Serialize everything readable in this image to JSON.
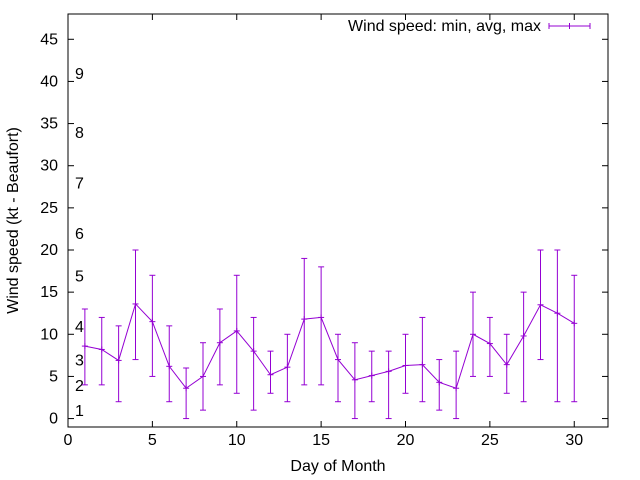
{
  "chart_data": {
    "type": "line",
    "xlabel": "Day of Month",
    "ylabel": "Wind speed (kt - Beaufort)",
    "xlim": [
      0,
      32
    ],
    "ylim": [
      -1,
      48
    ],
    "xticks": [
      0,
      5,
      10,
      15,
      20,
      25,
      30
    ],
    "yticks": [
      0,
      5,
      10,
      15,
      20,
      25,
      30,
      35,
      40,
      45
    ],
    "grid": false,
    "legend_position": "top-right",
    "series": [
      {
        "name": "Wind speed: min, avg, max",
        "color": "#9400d3",
        "x": [
          1,
          2,
          3,
          4,
          5,
          6,
          7,
          8,
          9,
          10,
          11,
          12,
          13,
          14,
          15,
          16,
          17,
          18,
          19,
          20,
          21,
          22,
          23,
          24,
          25,
          26,
          27,
          28,
          29,
          30
        ],
        "avg": [
          8.6,
          8.2,
          6.9,
          13.6,
          11.5,
          6.2,
          3.6,
          5.0,
          9.0,
          10.4,
          8.0,
          5.2,
          6.1,
          11.8,
          12.0,
          7.0,
          4.6,
          5.1,
          5.6,
          6.3,
          6.4,
          4.3,
          3.6,
          10.0,
          8.9,
          6.4,
          9.8,
          13.5,
          12.5,
          11.3
        ],
        "min": [
          4,
          4,
          2,
          7,
          5,
          2,
          0,
          1,
          4,
          3,
          1,
          3,
          2,
          4,
          4,
          2,
          0,
          2,
          0,
          3,
          2,
          1,
          0,
          5,
          5,
          3,
          2,
          7,
          2,
          2
        ],
        "max": [
          13,
          12,
          11,
          20,
          17,
          11,
          6,
          9,
          13,
          17,
          12,
          8,
          10,
          19,
          18,
          10,
          9,
          8,
          8,
          10,
          12,
          7,
          8,
          15,
          12,
          10,
          15,
          20,
          20,
          17
        ]
      }
    ],
    "beaufort_labels": [
      {
        "label": "1",
        "y": 1
      },
      {
        "label": "2",
        "y": 4
      },
      {
        "label": "3",
        "y": 7
      },
      {
        "label": "4",
        "y": 11
      },
      {
        "label": "5",
        "y": 17
      },
      {
        "label": "6",
        "y": 22
      },
      {
        "label": "7",
        "y": 28
      },
      {
        "label": "8",
        "y": 34
      },
      {
        "label": "9",
        "y": 41
      }
    ]
  }
}
